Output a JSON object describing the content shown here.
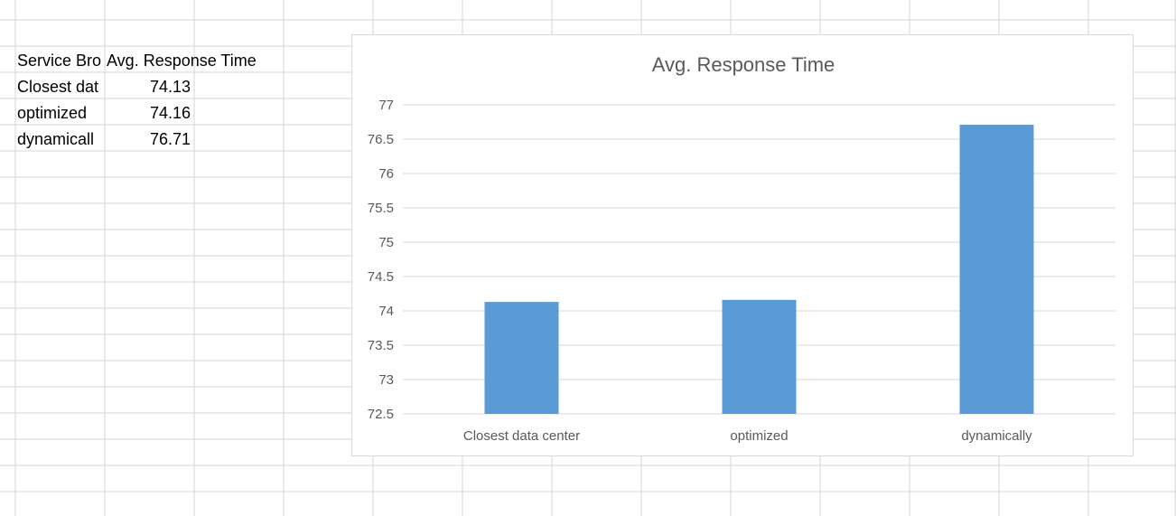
{
  "sheet": {
    "headers": [
      "Service Bro",
      "Avg. Response Time"
    ],
    "rows": [
      {
        "label": "Closest dat",
        "value": "74.13"
      },
      {
        "label": "optimized",
        "value": "74.16"
      },
      {
        "label": "dynamicall",
        "value": "76.71"
      }
    ]
  },
  "colors": {
    "bar": "#5b9bd5",
    "gridline": "#d9d9d9",
    "cell_grid": "#d4d4d4",
    "text": "#595959"
  },
  "chart_data": {
    "type": "bar",
    "title": "Avg. Response Time",
    "categories": [
      "Closest data center",
      "optimized",
      "dynamically"
    ],
    "values": [
      74.13,
      74.16,
      76.71
    ],
    "ylim": [
      72.5,
      77
    ],
    "yticks": [
      "72.5",
      "73",
      "73.5",
      "74",
      "74.5",
      "75",
      "75.5",
      "76",
      "76.5",
      "77"
    ],
    "grid": true,
    "legend": "none"
  }
}
